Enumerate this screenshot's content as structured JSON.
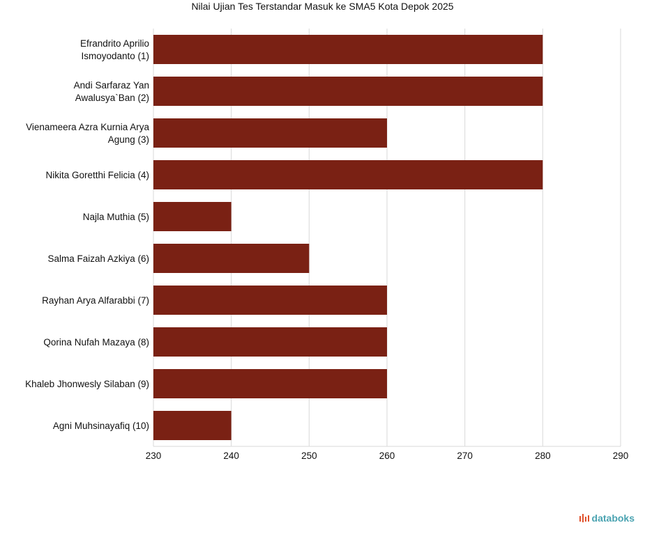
{
  "chart_data": {
    "type": "bar",
    "orientation": "horizontal",
    "title": "Nilai Ujian Tes Terstandar Masuk ke SMA5 Kota Depok 2025",
    "categories": [
      [
        "Efrandrito Aprilio",
        "Ismoyodanto (1)"
      ],
      [
        "Andi Sarfaraz Yan",
        "Awalusya`Ban (2)"
      ],
      [
        "Vienameera Azra Kurnia Arya",
        "Agung (3)"
      ],
      [
        "Nikita Goretthi Felicia (4)"
      ],
      [
        "Najla Muthia (5)"
      ],
      [
        "Salma Faizah Azkiya (6)"
      ],
      [
        "Rayhan Arya Alfarabbi (7)"
      ],
      [
        "Qorina Nufah Mazaya (8)"
      ],
      [
        "Khaleb Jhonwesly Silaban  (9)"
      ],
      [
        "Agni Muhsinayafiq (10)"
      ]
    ],
    "values": [
      280,
      280,
      260,
      280,
      240,
      250,
      260,
      260,
      260,
      240
    ],
    "xlim": [
      230,
      290
    ],
    "xticks": [
      230,
      240,
      250,
      260,
      270,
      280,
      290
    ],
    "xlabel": "",
    "ylabel": "",
    "grid": true,
    "bar_color": "#7a2114"
  },
  "brand": {
    "name": "databoks",
    "accent": "#e0522d",
    "text_color": "#4aa3b1"
  }
}
